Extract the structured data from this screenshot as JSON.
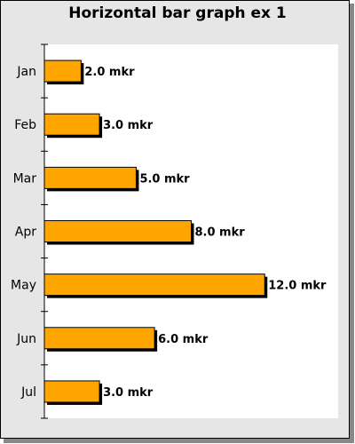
{
  "chart_data": {
    "type": "bar",
    "orientation": "horizontal",
    "title": "Horizontal bar graph ex 1",
    "categories": [
      "Jan",
      "Feb",
      "Mar",
      "Apr",
      "May",
      "Jun",
      "Jul"
    ],
    "values": [
      2.0,
      3.0,
      5.0,
      8.0,
      12.0,
      6.0,
      3.0
    ],
    "data_labels": [
      "2.0 mkr",
      "3.0 mkr",
      "5.0 mkr",
      "8.0 mkr",
      "12.0 mkr",
      "6.0 mkr",
      "3.0 mkr"
    ],
    "xlabel": "",
    "ylabel": "",
    "xlim": [
      0,
      16
    ],
    "grid": false,
    "colors": {
      "bar_fill": "#ffa500",
      "bar_shadow": "#000000",
      "plot_background": "#ffffff",
      "frame_background": "#e6e6e6"
    }
  }
}
